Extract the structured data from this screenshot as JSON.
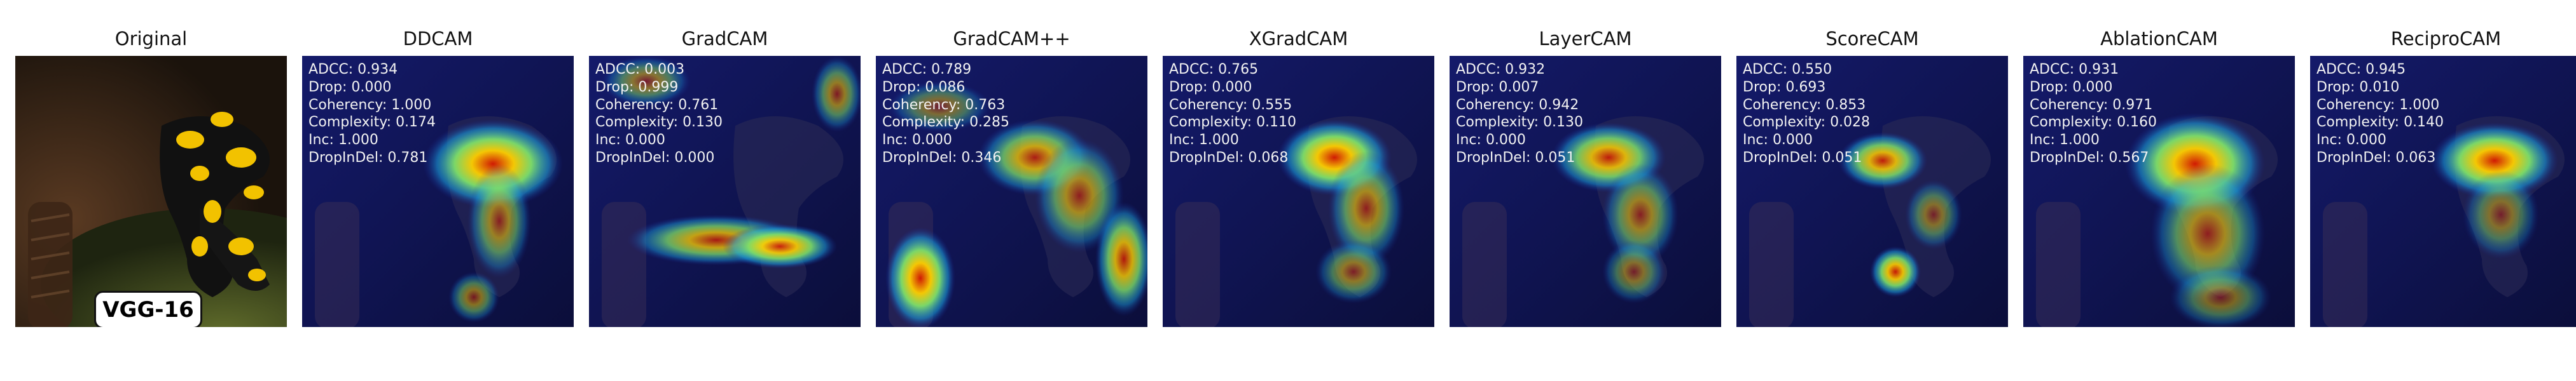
{
  "original": {
    "title": "Original",
    "badge": "VGG-16"
  },
  "panels": [
    {
      "title": "DDCAM",
      "metrics": [
        {
          "label": "ADCC",
          "value": "0.934"
        },
        {
          "label": "Drop",
          "value": "0.000"
        },
        {
          "label": "Coherency",
          "value": "1.000"
        },
        {
          "label": "Complexity",
          "value": "0.174"
        },
        {
          "label": "Inc",
          "value": "1.000"
        },
        {
          "label": "DropInDel",
          "value": "0.781"
        }
      ]
    },
    {
      "title": "GradCAM",
      "metrics": [
        {
          "label": "ADCC",
          "value": "0.003"
        },
        {
          "label": "Drop",
          "value": "0.999"
        },
        {
          "label": "Coherency",
          "value": "0.761"
        },
        {
          "label": "Complexity",
          "value": "0.130"
        },
        {
          "label": "Inc",
          "value": "0.000"
        },
        {
          "label": "DropInDel",
          "value": "0.000"
        }
      ]
    },
    {
      "title": "GradCAM++",
      "metrics": [
        {
          "label": "ADCC",
          "value": "0.789"
        },
        {
          "label": "Drop",
          "value": "0.086"
        },
        {
          "label": "Coherency",
          "value": "0.763"
        },
        {
          "label": "Complexity",
          "value": "0.285"
        },
        {
          "label": "Inc",
          "value": "0.000"
        },
        {
          "label": "DropInDel",
          "value": "0.346"
        }
      ]
    },
    {
      "title": "XGradCAM",
      "metrics": [
        {
          "label": "ADCC",
          "value": "0.765"
        },
        {
          "label": "Drop",
          "value": "0.000"
        },
        {
          "label": "Coherency",
          "value": "0.555"
        },
        {
          "label": "Complexity",
          "value": "0.110"
        },
        {
          "label": "Inc",
          "value": "1.000"
        },
        {
          "label": "DropInDel",
          "value": "0.068"
        }
      ]
    },
    {
      "title": "LayerCAM",
      "metrics": [
        {
          "label": "ADCC",
          "value": "0.932"
        },
        {
          "label": "Drop",
          "value": "0.007"
        },
        {
          "label": "Coherency",
          "value": "0.942"
        },
        {
          "label": "Complexity",
          "value": "0.130"
        },
        {
          "label": "Inc",
          "value": "0.000"
        },
        {
          "label": "DropInDel",
          "value": "0.051"
        }
      ]
    },
    {
      "title": "ScoreCAM",
      "metrics": [
        {
          "label": "ADCC",
          "value": "0.550"
        },
        {
          "label": "Drop",
          "value": "0.693"
        },
        {
          "label": "Coherency",
          "value": "0.853"
        },
        {
          "label": "Complexity",
          "value": "0.028"
        },
        {
          "label": "Inc",
          "value": "0.000"
        },
        {
          "label": "DropInDel",
          "value": "0.051"
        }
      ]
    },
    {
      "title": "AblationCAM",
      "metrics": [
        {
          "label": "ADCC",
          "value": "0.931"
        },
        {
          "label": "Drop",
          "value": "0.000"
        },
        {
          "label": "Coherency",
          "value": "0.971"
        },
        {
          "label": "Complexity",
          "value": "0.160"
        },
        {
          "label": "Inc",
          "value": "1.000"
        },
        {
          "label": "DropInDel",
          "value": "0.567"
        }
      ]
    },
    {
      "title": "ReciproCAM",
      "metrics": [
        {
          "label": "ADCC",
          "value": "0.945"
        },
        {
          "label": "Drop",
          "value": "0.010"
        },
        {
          "label": "Coherency",
          "value": "1.000"
        },
        {
          "label": "Complexity",
          "value": "0.140"
        },
        {
          "label": "Inc",
          "value": "0.000"
        },
        {
          "label": "DropInDel",
          "value": "0.063"
        }
      ]
    }
  ]
}
